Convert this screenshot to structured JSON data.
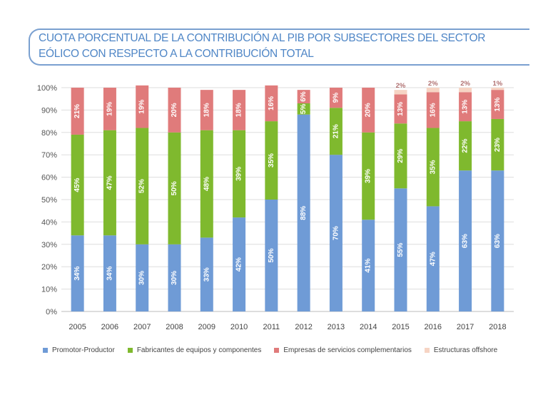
{
  "chart_data": {
    "type": "bar",
    "stacked": true,
    "title": "CUOTA PORCENTUAL DE LA CONTRIBUCIÓN AL PIB POR SUBSECTORES DEL SECTOR EÓLICO CON RESPECTO A LA CONTRIBUCIÓN TOTAL",
    "title_lines": [
      "CUOTA PORCENTUAL DE LA CONTRIBUCIÓN AL PIB POR SUBSECTORES DEL SECTOR",
      "EÓLICO CON RESPECTO A LA CONTRIBUCIÓN TOTAL"
    ],
    "xlabel": "",
    "ylabel": "",
    "ylim": [
      0,
      100
    ],
    "yticks": [
      "0%",
      "10%",
      "20%",
      "30%",
      "40%",
      "50%",
      "60%",
      "70%",
      "80%",
      "90%",
      "100%"
    ],
    "grid": true,
    "legend_position": "bottom",
    "categories": [
      "2005",
      "2006",
      "2007",
      "2008",
      "2009",
      "2010",
      "2011",
      "2012",
      "2013",
      "2014",
      "2015",
      "2016",
      "2017",
      "2018"
    ],
    "series": [
      {
        "name": "Promotor-Productor",
        "color": "#6f9bd6",
        "values": [
          34,
          34,
          30,
          30,
          33,
          42,
          50,
          88,
          70,
          41,
          55,
          47,
          63,
          63
        ]
      },
      {
        "name": "Fabricantes de equipos y componentes",
        "color": "#7fb92e",
        "values": [
          45,
          47,
          52,
          50,
          48,
          39,
          35,
          5,
          21,
          39,
          29,
          35,
          22,
          23
        ]
      },
      {
        "name": "Empresas de servicios complementarios",
        "color": "#e07b7b",
        "values": [
          21,
          19,
          19,
          20,
          18,
          18,
          16,
          6,
          9,
          20,
          13,
          16,
          13,
          13
        ]
      },
      {
        "name": "Estructuras offshore",
        "color": "#f6d4c4",
        "values": [
          0,
          0,
          0,
          0,
          0,
          0,
          0,
          0,
          0,
          0,
          2,
          2,
          2,
          1
        ]
      }
    ]
  }
}
